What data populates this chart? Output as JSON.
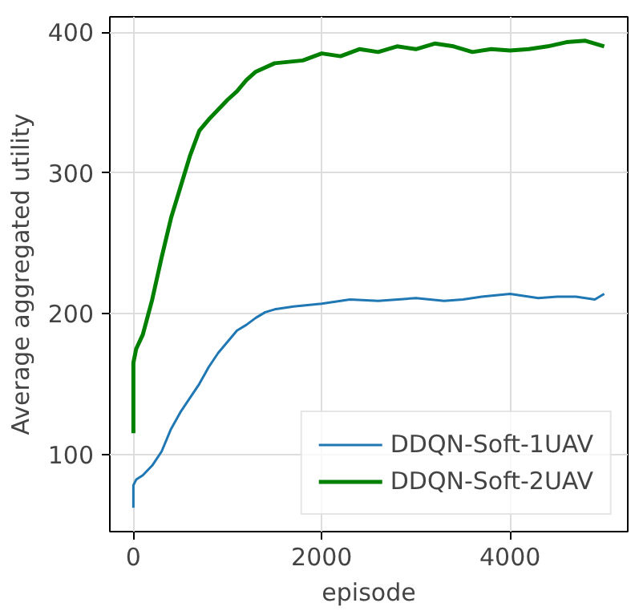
{
  "chart_data": {
    "type": "line",
    "xlabel": "episode",
    "ylabel": "Average aggregated utility",
    "xlim": [
      -250,
      5250
    ],
    "ylim": [
      45,
      411
    ],
    "xticks": [
      0,
      2000,
      4000
    ],
    "yticks": [
      100,
      200,
      300,
      400
    ],
    "grid": true,
    "legend": "bottom right",
    "series": [
      {
        "name": "DDQN-Soft-1UAV",
        "color": "#1f77b4",
        "x": [
          0,
          0,
          30,
          100,
          200,
          300,
          400,
          500,
          600,
          700,
          800,
          900,
          1000,
          1100,
          1200,
          1300,
          1400,
          1500,
          1700,
          2000,
          2300,
          2600,
          3000,
          3300,
          3500,
          3700,
          4000,
          4300,
          4500,
          4700,
          4900,
          5000
        ],
        "values": [
          62,
          78,
          82,
          85,
          92,
          102,
          118,
          130,
          140,
          150,
          162,
          172,
          180,
          188,
          192,
          197,
          201,
          203,
          205,
          207,
          210,
          209,
          211,
          209,
          210,
          212,
          214,
          211,
          212,
          212,
          210,
          214
        ]
      },
      {
        "name": "DDQN-Soft-2UAV",
        "color": "#008000",
        "x": [
          0,
          0,
          30,
          100,
          200,
          300,
          400,
          500,
          600,
          700,
          800,
          900,
          1000,
          1100,
          1200,
          1300,
          1500,
          1800,
          2000,
          2200,
          2400,
          2600,
          2800,
          3000,
          3200,
          3400,
          3600,
          3800,
          4000,
          4200,
          4400,
          4600,
          4800,
          5000
        ],
        "values": [
          115,
          165,
          175,
          185,
          210,
          240,
          268,
          290,
          312,
          330,
          338,
          345,
          352,
          358,
          366,
          372,
          378,
          380,
          385,
          383,
          388,
          386,
          390,
          388,
          392,
          390,
          386,
          388,
          387,
          388,
          390,
          393,
          394,
          390
        ]
      }
    ]
  }
}
